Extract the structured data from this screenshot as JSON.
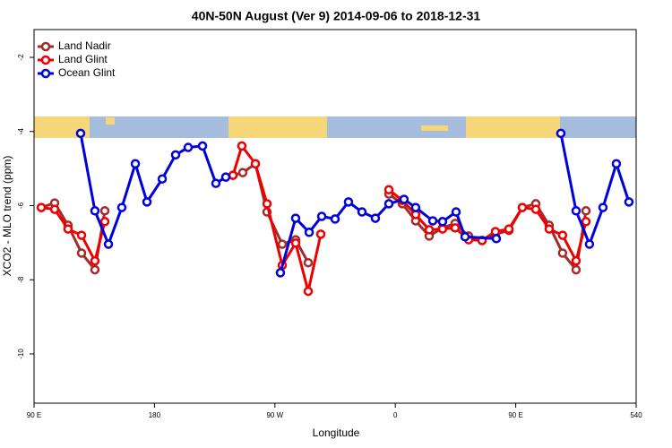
{
  "chart_data": {
    "type": "line",
    "title": "40N-50N August (Ver 9)   2014-09-06 to 2018-12-31",
    "xlabel": "Longitude",
    "ylabel": "XCO2 - MLO trend (ppm)",
    "xlim": [
      90,
      540
    ],
    "ylim": [
      -11.33,
      -1.25
    ],
    "xticks": [
      {
        "value": 90,
        "label": "90 E"
      },
      180,
      {
        "value": 270,
        "label": "90 W"
      },
      {
        "value": 360,
        "label": "0"
      },
      {
        "value": 450,
        "label": "90 E"
      },
      540
    ],
    "yticks": [
      -2,
      -4,
      -6,
      -8,
      -10
    ],
    "legend": "upper left",
    "series": [
      {
        "name": "Land Nadir",
        "color": "#a52a2a",
        "x": [
          95.4,
          105.4,
          115.4,
          125.5,
          135.5,
          142.9,
          null,
          238.7,
          246.0,
          255.4,
          264.1,
          275.5,
          285.5,
          294.9,
          null,
          355.2,
          365.2,
          375.2,
          385.3,
          395.3,
          404.7,
          414.8,
          424.8,
          434.8,
          444.9,
          454.9,
          465.0,
          475.0,
          485.0,
          495.1,
          502.5
        ],
        "values": [
          -6.05,
          -5.93,
          -6.53,
          -7.28,
          -7.73,
          -6.14,
          null,
          -5.18,
          -5.11,
          -4.87,
          -6.17,
          -7.04,
          -6.92,
          -7.54,
          null,
          -5.69,
          -5.95,
          -6.41,
          -6.82,
          -6.6,
          -6.48,
          -6.82,
          -6.94,
          -6.77,
          -6.67,
          -6.05,
          -5.95,
          -6.53,
          -7.28,
          -7.73,
          -6.14
        ]
      },
      {
        "name": "Land Glint",
        "color": "#ee0000",
        "x": [
          95.4,
          105.4,
          115.4,
          125.5,
          135.5,
          142.9,
          null,
          238.7,
          245.3,
          255.4,
          264.1,
          275.5,
          285.5,
          294.9,
          304.3,
          null,
          355.2,
          365.2,
          375.2,
          385.3,
          395.3,
          404.7,
          414.8,
          424.8,
          434.8,
          444.9,
          454.9,
          465.0,
          475.0,
          485.0,
          495.1,
          502.5
        ],
        "values": [
          -6.05,
          -6.1,
          -6.63,
          -6.8,
          -7.49,
          -6.43,
          null,
          -5.18,
          -4.39,
          -4.87,
          -5.95,
          -7.61,
          -7.01,
          -8.31,
          -6.77,
          null,
          -5.57,
          -5.86,
          -6.24,
          -6.65,
          -6.63,
          -6.6,
          -6.92,
          -6.94,
          -6.7,
          -6.63,
          -6.05,
          -6.1,
          -6.63,
          -6.8,
          -7.49,
          -6.43
        ]
      },
      {
        "name": "Ocean Glint",
        "color": "#0000dd",
        "x": [
          124.8,
          135.5,
          145.6,
          155.6,
          165.7,
          174.4,
          185.8,
          195.8,
          205.2,
          215.9,
          225.9,
          233.3,
          null,
          274.1,
          285.5,
          295.6,
          305.0,
          315.0,
          325.0,
          335.1,
          345.1,
          355.2,
          366.5,
          375.2,
          388.0,
          395.3,
          405.4,
          412.1,
          435.5,
          null,
          483.7,
          495.1,
          505.1,
          515.2,
          525.2,
          534.6
        ],
        "values": [
          -4.05,
          -6.14,
          -7.04,
          -6.05,
          -4.87,
          -5.9,
          -5.28,
          -4.63,
          -4.43,
          -4.39,
          -5.4,
          -5.23,
          null,
          -7.81,
          -6.34,
          -6.72,
          -6.29,
          -6.36,
          -5.9,
          -6.17,
          -6.34,
          -5.95,
          -5.83,
          -6.05,
          -6.41,
          -6.43,
          -6.17,
          -6.84,
          -6.89,
          null,
          -4.05,
          -6.14,
          -7.04,
          -6.05,
          -4.87,
          -5.9
        ]
      }
    ]
  }
}
